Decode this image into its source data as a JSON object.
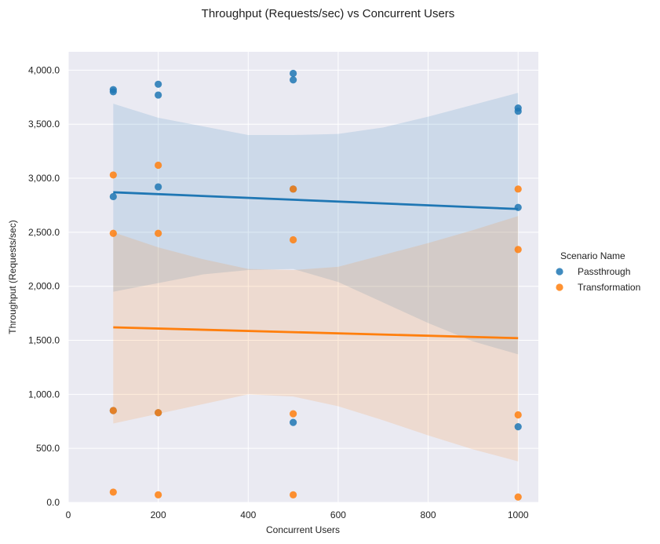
{
  "chart_data": {
    "type": "scatter",
    "title": "Throughput (Requests/sec) vs Concurrent Users",
    "xlabel": "Concurrent Users",
    "ylabel": "Throughput (Requests/sec)",
    "xlim": [
      0,
      1045
    ],
    "ylim": [
      0,
      4170
    ],
    "xticks": [
      0,
      200,
      400,
      600,
      800,
      1000
    ],
    "yticks": [
      0,
      500,
      1000,
      1500,
      2000,
      2500,
      3000,
      3500,
      4000
    ],
    "ytick_labels": [
      "0.0",
      "500.0",
      "1,000.0",
      "1,500.0",
      "2,000.0",
      "2,500.0",
      "3,000.0",
      "3,500.0",
      "4,000.0"
    ],
    "grid": true,
    "legend": {
      "title": "Scenario Name",
      "placement": "right"
    },
    "series": [
      {
        "name": "Passthrough",
        "color": "#1f77b4",
        "x": [
          100,
          100,
          100,
          100,
          200,
          200,
          200,
          200,
          500,
          500,
          500,
          500,
          1000,
          1000,
          1000,
          1000
        ],
        "y": [
          3820,
          3800,
          2830,
          850,
          3870,
          3770,
          2920,
          830,
          3970,
          3910,
          2900,
          740,
          3650,
          3620,
          2730,
          700
        ],
        "regression": {
          "x": [
            100,
            1000
          ],
          "y": [
            2870,
            2715
          ]
        },
        "ci_upper": [
          [
            100,
            3690
          ],
          [
            200,
            3560
          ],
          [
            300,
            3480
          ],
          [
            400,
            3400
          ],
          [
            500,
            3400
          ],
          [
            600,
            3410
          ],
          [
            700,
            3470
          ],
          [
            800,
            3570
          ],
          [
            900,
            3680
          ],
          [
            1000,
            3790
          ]
        ],
        "ci_lower": [
          [
            100,
            1950
          ],
          [
            200,
            2030
          ],
          [
            300,
            2110
          ],
          [
            400,
            2150
          ],
          [
            500,
            2160
          ],
          [
            600,
            2040
          ],
          [
            700,
            1850
          ],
          [
            800,
            1660
          ],
          [
            900,
            1490
          ],
          [
            1000,
            1370
          ]
        ]
      },
      {
        "name": "Transformation",
        "color": "#ff7f0e",
        "x": [
          100,
          100,
          100,
          100,
          200,
          200,
          200,
          200,
          500,
          500,
          500,
          500,
          1000,
          1000,
          1000,
          1000
        ],
        "y": [
          3030,
          2490,
          850,
          95,
          3120,
          2490,
          830,
          70,
          2900,
          2430,
          820,
          70,
          2900,
          2340,
          810,
          50
        ],
        "regression": {
          "x": [
            100,
            1000
          ],
          "y": [
            1620,
            1520
          ]
        },
        "ci_upper": [
          [
            100,
            2500
          ],
          [
            200,
            2360
          ],
          [
            300,
            2250
          ],
          [
            400,
            2160
          ],
          [
            500,
            2150
          ],
          [
            600,
            2180
          ],
          [
            700,
            2290
          ],
          [
            800,
            2400
          ],
          [
            900,
            2520
          ],
          [
            1000,
            2650
          ]
        ],
        "ci_lower": [
          [
            100,
            730
          ],
          [
            200,
            820
          ],
          [
            300,
            910
          ],
          [
            400,
            1000
          ],
          [
            500,
            980
          ],
          [
            600,
            890
          ],
          [
            700,
            760
          ],
          [
            800,
            620
          ],
          [
            900,
            490
          ],
          [
            1000,
            380
          ]
        ]
      }
    ]
  }
}
